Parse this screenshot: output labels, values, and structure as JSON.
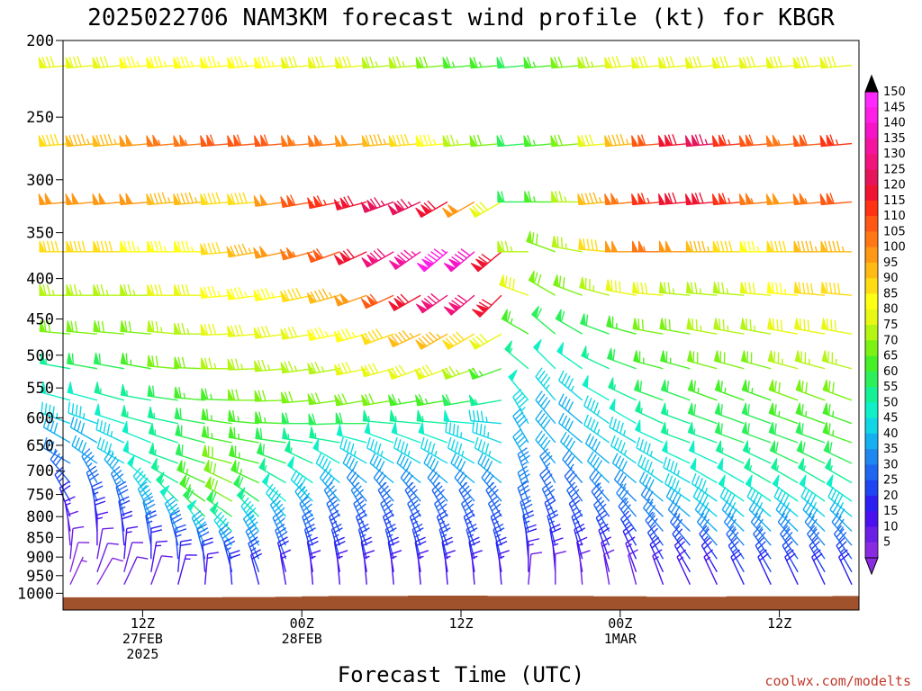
{
  "title": "2025022706 NAM3KM forecast wind profile (kt) for KBGR",
  "credit": "coolwx.com/modelts",
  "chart_data": {
    "type": "wind-barb time-height profile",
    "title": "2025022706 NAM3KM forecast wind profile (kt) for KBGR",
    "xlabel": "Forecast Time (UTC)",
    "ylabel": "",
    "y_scale": "log (pressure, hPa, inverted)",
    "ylim": [
      1050,
      200
    ],
    "y_ticks": [
      "200",
      "250",
      "300",
      "350",
      "400",
      "450",
      "500",
      "550",
      "600",
      "650",
      "700",
      "750",
      "800",
      "850",
      "900",
      "950",
      "1000"
    ],
    "x_range_hours": [
      6,
      66
    ],
    "x_ticks": [
      {
        "hour": 12,
        "lines": [
          "12Z",
          "27FEB",
          "2025"
        ]
      },
      {
        "hour": 24,
        "lines": [
          "00Z",
          "28FEB"
        ]
      },
      {
        "hour": 36,
        "lines": [
          "12Z"
        ]
      },
      {
        "hour": 48,
        "lines": [
          "00Z",
          "1MAR"
        ]
      },
      {
        "hour": 60,
        "lines": [
          "12Z"
        ]
      }
    ],
    "levels_hpa": [
      215,
      270,
      320,
      370,
      420,
      470,
      520,
      570,
      610,
      645,
      685,
      725,
      765,
      800,
      835,
      870,
      905,
      940,
      975
    ],
    "wind_dir_deg": [
      [
        265,
        265,
        265,
        265,
        265,
        265,
        265,
        265,
        265,
        265,
        265,
        265,
        265,
        265,
        265,
        265,
        265,
        265,
        265,
        265,
        265,
        265,
        265,
        265,
        265,
        265,
        265,
        265,
        265,
        265
      ],
      [
        265,
        265,
        265,
        265,
        265,
        265,
        265,
        265,
        265,
        265,
        265,
        265,
        265,
        265,
        265,
        265,
        265,
        265,
        265,
        265,
        265,
        265,
        265,
        265,
        265,
        265,
        265,
        265,
        265,
        265
      ],
      [
        265,
        265,
        265,
        265,
        265,
        265,
        265,
        265,
        262,
        260,
        258,
        255,
        250,
        245,
        240,
        240,
        240,
        270,
        270,
        270,
        265,
        265,
        265,
        265,
        265,
        265,
        265,
        265,
        265,
        265
      ],
      [
        270,
        270,
        270,
        270,
        270,
        270,
        265,
        260,
        258,
        255,
        250,
        245,
        240,
        235,
        230,
        230,
        230,
        270,
        290,
        280,
        275,
        270,
        270,
        270,
        270,
        270,
        270,
        270,
        270,
        270
      ],
      [
        270,
        270,
        270,
        270,
        270,
        270,
        265,
        262,
        260,
        258,
        255,
        250,
        245,
        240,
        235,
        230,
        225,
        290,
        300,
        290,
        285,
        280,
        275,
        275,
        275,
        275,
        275,
        275,
        275,
        275
      ],
      [
        275,
        275,
        275,
        275,
        275,
        270,
        268,
        265,
        262,
        260,
        258,
        255,
        250,
        245,
        240,
        240,
        240,
        300,
        310,
        300,
        290,
        285,
        280,
        280,
        280,
        280,
        280,
        280,
        280,
        280
      ],
      [
        280,
        280,
        280,
        280,
        275,
        272,
        270,
        268,
        265,
        262,
        260,
        258,
        255,
        250,
        250,
        250,
        250,
        310,
        315,
        305,
        295,
        290,
        285,
        285,
        285,
        285,
        285,
        285,
        285,
        285
      ],
      [
        285,
        285,
        285,
        280,
        278,
        275,
        272,
        270,
        268,
        265,
        262,
        260,
        260,
        260,
        260,
        260,
        260,
        320,
        320,
        310,
        300,
        295,
        290,
        290,
        290,
        290,
        290,
        290,
        290,
        290
      ],
      [
        290,
        290,
        288,
        285,
        282,
        280,
        278,
        275,
        272,
        270,
        268,
        270,
        275,
        275,
        275,
        275,
        275,
        330,
        320,
        310,
        305,
        300,
        295,
        290,
        290,
        290,
        290,
        290,
        290,
        290
      ],
      [
        300,
        300,
        295,
        292,
        288,
        285,
        282,
        280,
        278,
        278,
        280,
        285,
        290,
        290,
        290,
        290,
        290,
        330,
        320,
        310,
        305,
        300,
        295,
        290,
        290,
        290,
        290,
        290,
        290,
        290
      ],
      [
        300,
        305,
        300,
        295,
        290,
        288,
        285,
        285,
        290,
        295,
        300,
        300,
        300,
        300,
        300,
        300,
        300,
        330,
        320,
        315,
        310,
        305,
        300,
        295,
        295,
        295,
        295,
        295,
        295,
        295
      ],
      [
        320,
        330,
        320,
        310,
        300,
        295,
        295,
        295,
        300,
        305,
        310,
        310,
        310,
        310,
        310,
        310,
        310,
        340,
        330,
        320,
        315,
        310,
        305,
        300,
        300,
        300,
        300,
        300,
        300,
        300
      ],
      [
        330,
        340,
        335,
        325,
        315,
        305,
        300,
        305,
        310,
        315,
        320,
        320,
        320,
        320,
        320,
        320,
        320,
        340,
        330,
        325,
        320,
        315,
        310,
        305,
        305,
        305,
        305,
        305,
        305,
        305
      ],
      [
        340,
        350,
        345,
        335,
        325,
        315,
        305,
        315,
        320,
        325,
        330,
        330,
        330,
        330,
        330,
        330,
        330,
        340,
        335,
        330,
        325,
        320,
        315,
        310,
        310,
        310,
        310,
        310,
        310,
        310
      ],
      [
        350,
        355,
        350,
        345,
        335,
        325,
        315,
        325,
        330,
        335,
        335,
        335,
        335,
        335,
        335,
        335,
        335,
        345,
        340,
        335,
        330,
        325,
        320,
        315,
        315,
        315,
        315,
        315,
        315,
        315
      ],
      [
        355,
        0,
        355,
        350,
        345,
        335,
        325,
        330,
        335,
        340,
        340,
        340,
        340,
        340,
        340,
        340,
        340,
        350,
        345,
        340,
        335,
        330,
        325,
        320,
        320,
        320,
        320,
        320,
        320,
        320
      ],
      [
        5,
        10,
        5,
        0,
        355,
        345,
        335,
        335,
        340,
        345,
        345,
        345,
        345,
        345,
        345,
        345,
        345,
        355,
        350,
        345,
        340,
        335,
        330,
        325,
        325,
        325,
        325,
        325,
        325,
        325
      ],
      [
        15,
        20,
        15,
        10,
        5,
        355,
        345,
        340,
        345,
        350,
        350,
        350,
        350,
        350,
        350,
        350,
        350,
        0,
        355,
        350,
        345,
        340,
        335,
        330,
        330,
        330,
        330,
        330,
        330,
        330
      ],
      [
        25,
        30,
        25,
        20,
        15,
        5,
        355,
        345,
        350,
        355,
        355,
        355,
        355,
        355,
        355,
        355,
        355,
        5,
        0,
        355,
        350,
        345,
        340,
        335,
        335,
        335,
        335,
        335,
        335,
        335
      ]
    ],
    "wind_speed_kt": [
      [
        80,
        80,
        80,
        85,
        85,
        85,
        85,
        85,
        85,
        80,
        80,
        80,
        75,
        75,
        70,
        65,
        65,
        60,
        65,
        70,
        75,
        80,
        80,
        80,
        80,
        80,
        80,
        80,
        80,
        80
      ],
      [
        90,
        95,
        95,
        100,
        105,
        105,
        110,
        110,
        110,
        105,
        105,
        100,
        95,
        90,
        85,
        75,
        70,
        60,
        65,
        70,
        80,
        95,
        110,
        120,
        125,
        115,
        110,
        105,
        110,
        115
      ],
      [
        100,
        100,
        100,
        100,
        95,
        95,
        90,
        90,
        100,
        110,
        115,
        120,
        125,
        125,
        120,
        100,
        80,
        60,
        65,
        75,
        95,
        105,
        115,
        120,
        120,
        115,
        105,
        100,
        105,
        110
      ],
      [
        90,
        90,
        90,
        85,
        85,
        85,
        90,
        95,
        100,
        105,
        110,
        120,
        130,
        135,
        145,
        140,
        120,
        75,
        70,
        75,
        90,
        100,
        105,
        100,
        95,
        90,
        85,
        90,
        95,
        95
      ],
      [
        75,
        75,
        75,
        75,
        80,
        80,
        85,
        85,
        85,
        90,
        95,
        100,
        110,
        120,
        130,
        130,
        120,
        80,
        70,
        70,
        75,
        80,
        80,
        75,
        75,
        75,
        80,
        85,
        90,
        90
      ],
      [
        70,
        70,
        70,
        70,
        75,
        75,
        80,
        80,
        80,
        80,
        85,
        85,
        90,
        95,
        95,
        90,
        80,
        65,
        60,
        60,
        60,
        65,
        70,
        70,
        75,
        75,
        75,
        80,
        80,
        80
      ],
      [
        55,
        60,
        60,
        65,
        70,
        70,
        75,
        75,
        75,
        75,
        75,
        80,
        80,
        80,
        80,
        75,
        65,
        55,
        50,
        50,
        55,
        60,
        65,
        65,
        70,
        70,
        70,
        75,
        75,
        75
      ],
      [
        50,
        50,
        55,
        55,
        60,
        65,
        65,
        70,
        70,
        70,
        70,
        70,
        70,
        65,
        65,
        60,
        55,
        50,
        45,
        45,
        50,
        55,
        60,
        60,
        65,
        65,
        65,
        70,
        70,
        70
      ],
      [
        45,
        45,
        50,
        55,
        55,
        60,
        65,
        65,
        65,
        60,
        60,
        60,
        55,
        55,
        55,
        50,
        45,
        45,
        40,
        40,
        45,
        50,
        55,
        55,
        60,
        60,
        60,
        65,
        65,
        65
      ],
      [
        40,
        40,
        45,
        50,
        55,
        60,
        65,
        65,
        60,
        55,
        55,
        50,
        50,
        50,
        50,
        45,
        45,
        40,
        40,
        40,
        45,
        45,
        50,
        55,
        55,
        60,
        60,
        60,
        60,
        65
      ],
      [
        35,
        40,
        45,
        50,
        55,
        60,
        70,
        65,
        60,
        55,
        50,
        45,
        45,
        45,
        45,
        45,
        45,
        40,
        40,
        40,
        40,
        45,
        45,
        50,
        50,
        55,
        55,
        60,
        60,
        60
      ],
      [
        30,
        35,
        40,
        50,
        55,
        65,
        70,
        65,
        55,
        50,
        45,
        40,
        40,
        40,
        40,
        40,
        40,
        35,
        35,
        35,
        40,
        40,
        45,
        45,
        50,
        50,
        55,
        55,
        55,
        55
      ],
      [
        25,
        30,
        35,
        45,
        55,
        65,
        70,
        60,
        50,
        45,
        40,
        35,
        35,
        35,
        35,
        35,
        35,
        35,
        30,
        30,
        35,
        35,
        40,
        45,
        45,
        50,
        50,
        50,
        50,
        50
      ],
      [
        20,
        25,
        30,
        40,
        50,
        60,
        60,
        55,
        45,
        40,
        35,
        35,
        30,
        30,
        30,
        30,
        30,
        30,
        30,
        30,
        30,
        35,
        35,
        40,
        45,
        45,
        45,
        45,
        45,
        45
      ],
      [
        15,
        20,
        25,
        35,
        40,
        50,
        55,
        45,
        40,
        35,
        30,
        30,
        30,
        30,
        30,
        30,
        30,
        30,
        25,
        25,
        30,
        30,
        35,
        35,
        40,
        40,
        40,
        40,
        40,
        40
      ],
      [
        12,
        15,
        20,
        25,
        30,
        40,
        45,
        40,
        35,
        30,
        25,
        25,
        25,
        25,
        25,
        25,
        25,
        25,
        25,
        25,
        25,
        25,
        30,
        30,
        35,
        35,
        35,
        35,
        35,
        35
      ],
      [
        10,
        12,
        15,
        20,
        25,
        30,
        35,
        35,
        30,
        25,
        25,
        25,
        25,
        25,
        25,
        25,
        25,
        20,
        20,
        20,
        20,
        20,
        25,
        25,
        25,
        30,
        30,
        30,
        30,
        30
      ],
      [
        8,
        10,
        12,
        15,
        20,
        20,
        25,
        25,
        20,
        20,
        20,
        20,
        20,
        20,
        20,
        20,
        20,
        15,
        15,
        15,
        15,
        15,
        20,
        20,
        20,
        25,
        25,
        25,
        25,
        25
      ],
      [
        5,
        8,
        10,
        10,
        15,
        15,
        20,
        20,
        15,
        15,
        15,
        15,
        15,
        15,
        15,
        15,
        15,
        10,
        10,
        10,
        10,
        10,
        15,
        15,
        15,
        20,
        20,
        20,
        20,
        20
      ]
    ],
    "colorbar": {
      "min": 5,
      "max": 150,
      "step": 5,
      "labels": [
        "150",
        "145",
        "140",
        "135",
        "130",
        "125",
        "120",
        "115",
        "110",
        "105",
        "100",
        "95",
        "90",
        "85",
        "80",
        "75",
        "70",
        "65",
        "60",
        "55",
        "50",
        "45",
        "40",
        "35",
        "30",
        "25",
        "20",
        "15",
        "10",
        "5"
      ],
      "colors": [
        "#8a2be2",
        "#6a1fe6",
        "#4b10ef",
        "#2b1ff2",
        "#1f44f2",
        "#1f66f0",
        "#1f88f0",
        "#14b0f0",
        "#10d6e6",
        "#10f0c8",
        "#14f096",
        "#2cf05a",
        "#46f026",
        "#7cf214",
        "#b4f514",
        "#e8f814",
        "#ffff14",
        "#ffdc14",
        "#ffba14",
        "#ff9814",
        "#ff7814",
        "#ff5814",
        "#ff3214",
        "#f01432",
        "#e6145a",
        "#f0147c",
        "#f514a0",
        "#f514c8",
        "#ff1ee6",
        "#ff28ff"
      ]
    },
    "terrain": {
      "color": "#a0522d",
      "surface_pressure_hpa": [
        1012,
        1012,
        1012,
        1012,
        1012,
        1012,
        1011,
        1011,
        1010,
        1009,
        1008,
        1008,
        1008,
        1007,
        1007,
        1007,
        1008,
        1008,
        1008,
        1008,
        1009,
        1009,
        1010,
        1010,
        1010,
        1009,
        1009,
        1009,
        1009,
        1008
      ]
    },
    "grid": false,
    "legend": "colorbar right"
  }
}
